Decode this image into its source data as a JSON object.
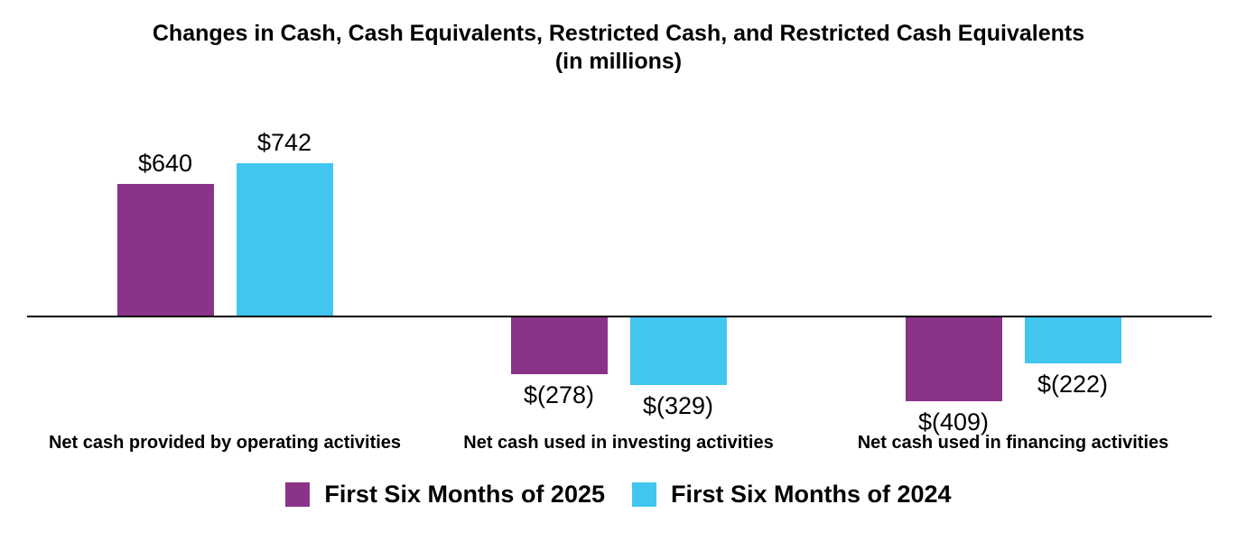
{
  "chart_data": {
    "type": "bar",
    "title": "Changes in Cash, Cash Equivalents, Restricted Cash, and Restricted Cash Equivalents",
    "subtitle": "(in millions)",
    "categories": [
      "Net cash provided by operating activities",
      "Net cash used in investing activities",
      "Net cash used in financing activities"
    ],
    "series": [
      {
        "name": "First Six Months of 2025",
        "color": "#8A3389",
        "values": [
          640,
          -278,
          -409
        ],
        "data_labels": [
          "$640",
          "$(278)",
          "$(409)"
        ]
      },
      {
        "name": "First Six Months of 2024",
        "color": "#41C6F0",
        "values": [
          742,
          -329,
          -222
        ],
        "data_labels": [
          "$742",
          "$(329)",
          "$(222)"
        ]
      }
    ],
    "ylim": [
      -450,
      800
    ],
    "grid": false,
    "x_axis_line": true,
    "y_axis_visible": false,
    "legend_position": "bottom-center",
    "value_label_position": "outside-end"
  },
  "colors": {
    "series_2025": "#8A3389",
    "series_2024": "#41C6F0",
    "axis_line": "#000000",
    "text": "#000000",
    "background": "#FFFFFF"
  }
}
